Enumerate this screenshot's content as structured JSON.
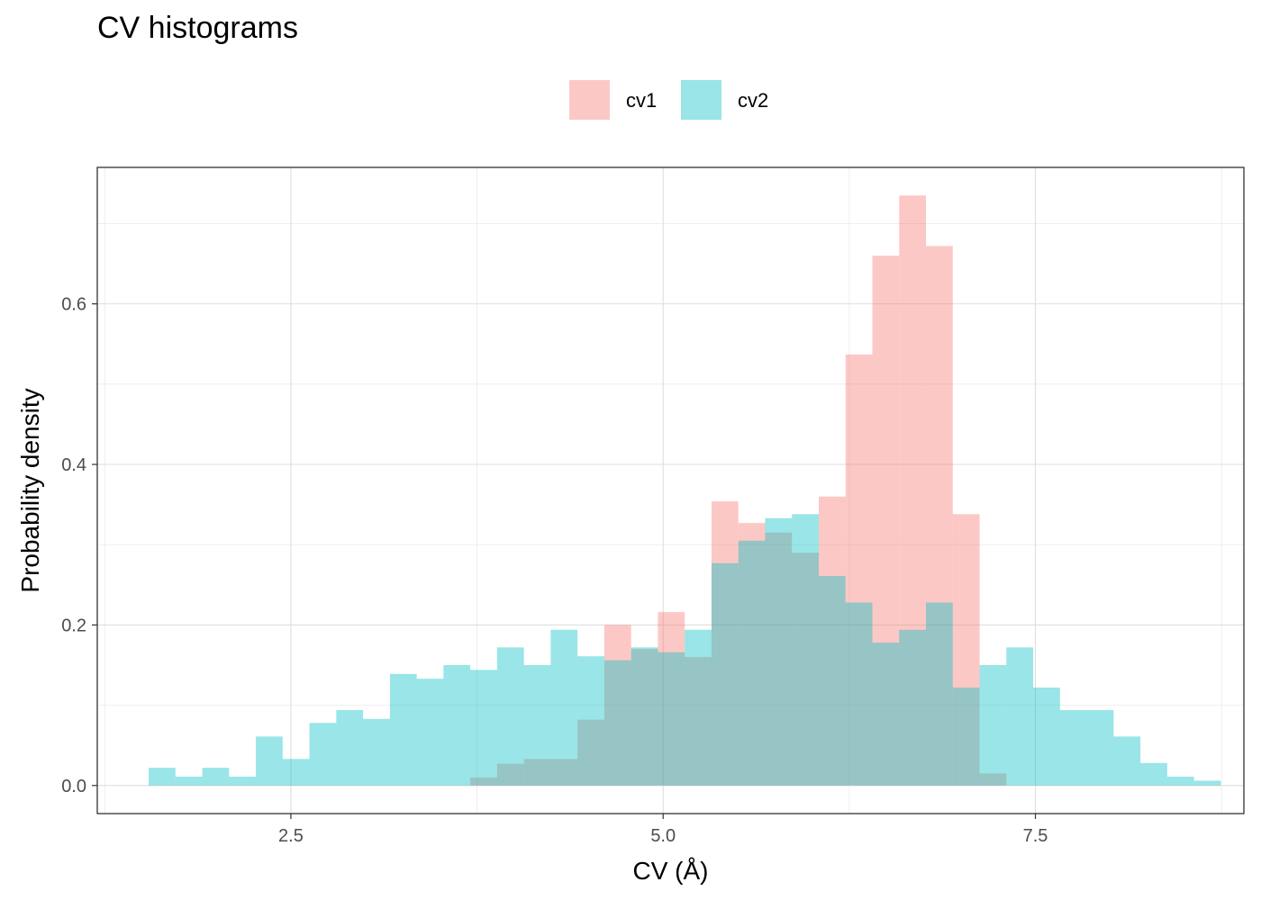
{
  "chart_data": {
    "type": "histogram",
    "title": "CV histograms",
    "xlabel": "CV (Å)",
    "ylabel": "Probability density",
    "xlim": [
      1.2,
      8.9
    ],
    "ylim": [
      -0.035,
      0.77
    ],
    "x_ticks": [
      2.5,
      5.0,
      7.5
    ],
    "x_tick_labels": [
      "2.5",
      "5.0",
      "7.5"
    ],
    "y_ticks": [
      0.0,
      0.2,
      0.4,
      0.6
    ],
    "y_tick_labels": [
      "0.0",
      "0.2",
      "0.4",
      "0.6"
    ],
    "grid": true,
    "legend_position": "top",
    "bin_width": 0.18,
    "series": [
      {
        "name": "cv1",
        "color": "#F8766D",
        "bin_start": 3.705,
        "values": [
          0.01,
          0.027,
          0.033,
          0.033,
          0.082,
          0.2,
          0.17,
          0.216,
          0.16,
          0.354,
          0.327,
          0.315,
          0.29,
          0.36,
          0.537,
          0.66,
          0.735,
          0.672,
          0.338,
          0.015
        ]
      },
      {
        "name": "cv2",
        "color": "#00BFC4",
        "bin_start": 1.545,
        "values": [
          0.022,
          0.011,
          0.022,
          0.011,
          0.061,
          0.033,
          0.078,
          0.094,
          0.083,
          0.139,
          0.133,
          0.15,
          0.144,
          0.172,
          0.15,
          0.194,
          0.161,
          0.156,
          0.172,
          0.166,
          0.194,
          0.277,
          0.305,
          0.333,
          0.338,
          0.261,
          0.228,
          0.178,
          0.194,
          0.228,
          0.122,
          0.15,
          0.172,
          0.122,
          0.094,
          0.094,
          0.061,
          0.028,
          0.011,
          0.006
        ]
      }
    ]
  }
}
